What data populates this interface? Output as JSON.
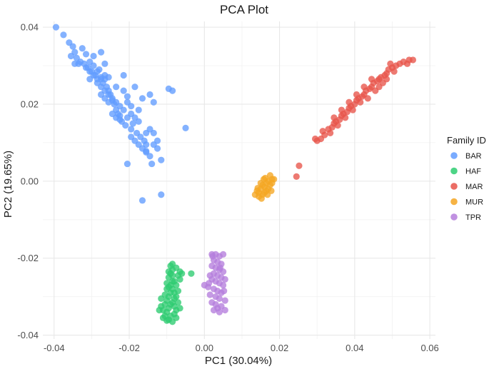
{
  "chart_data": {
    "type": "scatter",
    "title": "PCA Plot",
    "xlabel": "PC1 (30.04%)",
    "ylabel": "PC2 (19.65%)",
    "xlim": [
      -0.043,
      0.0615
    ],
    "ylim": [
      -0.041,
      0.0415
    ],
    "xticks": [
      -0.04,
      -0.02,
      0.0,
      0.02,
      0.04,
      0.06
    ],
    "xtick_labels": [
      "-0.04",
      "-0.02",
      "0.00",
      "0.02",
      "0.04",
      "0.06"
    ],
    "yticks": [
      -0.04,
      -0.02,
      0.0,
      0.02,
      0.04
    ],
    "ytick_labels": [
      "-0.04",
      "-0.02",
      "0.00",
      "0.02",
      "0.04"
    ],
    "grid": true,
    "legend": {
      "title": "Family ID",
      "position": "right"
    },
    "series": [
      {
        "name": "BAR",
        "color": "#619CFF",
        "points": [
          [
            -0.0395,
            0.04
          ],
          [
            -0.0375,
            0.038
          ],
          [
            -0.036,
            0.036
          ],
          [
            -0.035,
            0.035
          ],
          [
            -0.0345,
            0.0335
          ],
          [
            -0.034,
            0.032
          ],
          [
            -0.033,
            0.031
          ],
          [
            -0.032,
            0.0305
          ],
          [
            -0.031,
            0.0295
          ],
          [
            -0.0305,
            0.031
          ],
          [
            -0.03,
            0.0285
          ],
          [
            -0.0295,
            0.03
          ],
          [
            -0.029,
            0.0275
          ],
          [
            -0.0285,
            0.0265
          ],
          [
            -0.028,
            0.029
          ],
          [
            -0.0275,
            0.027
          ],
          [
            -0.027,
            0.0255
          ],
          [
            -0.0265,
            0.0265
          ],
          [
            -0.026,
            0.0245
          ],
          [
            -0.0255,
            0.0235
          ],
          [
            -0.025,
            0.0225
          ],
          [
            -0.0245,
            0.021
          ],
          [
            -0.024,
            0.02
          ],
          [
            -0.0235,
            0.0185
          ],
          [
            -0.023,
            0.0175
          ],
          [
            -0.0225,
            0.017
          ],
          [
            -0.022,
            0.0155
          ],
          [
            -0.021,
            0.0145
          ],
          [
            -0.0205,
            0.0165
          ],
          [
            -0.0195,
            0.0135
          ],
          [
            -0.019,
            0.015
          ],
          [
            -0.018,
            0.0125
          ],
          [
            -0.017,
            0.0115
          ],
          [
            -0.016,
            0.0105
          ],
          [
            -0.0155,
            0.0095
          ],
          [
            -0.0135,
            0.0125
          ],
          [
            -0.0125,
            0.0085
          ],
          [
            -0.0115,
            0.0055
          ],
          [
            -0.014,
            0.0045
          ],
          [
            -0.0155,
            0.0075
          ],
          [
            -0.0205,
            0.0045
          ],
          [
            -0.0115,
            -0.0035
          ],
          [
            -0.0165,
            -0.005
          ],
          [
            -0.005,
            0.0138
          ],
          [
            -0.0095,
            0.024
          ],
          [
            -0.0085,
            0.0235
          ],
          [
            -0.0145,
            0.0225
          ],
          [
            -0.0135,
            0.0205
          ],
          [
            -0.0185,
            0.0245
          ],
          [
            -0.0215,
            0.0275
          ],
          [
            -0.0205,
            0.022
          ],
          [
            -0.0175,
            0.0185
          ],
          [
            -0.0165,
            0.0215
          ],
          [
            -0.0255,
            0.027
          ],
          [
            -0.0275,
            0.0265
          ],
          [
            -0.0325,
            0.0345
          ],
          [
            -0.0315,
            0.033
          ],
          [
            -0.0335,
            0.0305
          ],
          [
            -0.0305,
            0.0285
          ],
          [
            -0.0295,
            0.0275
          ],
          [
            -0.0285,
            0.0255
          ],
          [
            -0.0275,
            0.0245
          ],
          [
            -0.0265,
            0.0235
          ],
          [
            -0.0255,
            0.0225
          ],
          [
            -0.0245,
            0.0215
          ],
          [
            -0.0235,
            0.0205
          ],
          [
            -0.0225,
            0.0195
          ],
          [
            -0.0215,
            0.0185
          ],
          [
            -0.0245,
            0.0175
          ],
          [
            -0.0235,
            0.0165
          ],
          [
            -0.0225,
            0.016
          ],
          [
            -0.0195,
            0.0175
          ],
          [
            -0.0185,
            0.0165
          ],
          [
            -0.0175,
            0.0155
          ],
          [
            -0.0195,
            0.0115
          ],
          [
            -0.0185,
            0.0105
          ],
          [
            -0.0175,
            0.0095
          ],
          [
            -0.0165,
            0.0085
          ],
          [
            -0.0155,
            0.0078
          ],
          [
            -0.0145,
            0.0065
          ],
          [
            -0.0135,
            0.0095
          ],
          [
            -0.0125,
            0.0105
          ],
          [
            -0.0155,
            0.0125
          ],
          [
            -0.0145,
            0.0135
          ],
          [
            -0.0275,
            0.0335
          ],
          [
            -0.0265,
            0.0305
          ],
          [
            -0.0295,
            0.0325
          ],
          [
            -0.0345,
            0.0305
          ],
          [
            -0.0355,
            0.0325
          ],
          [
            -0.0315,
            0.0295
          ],
          [
            -0.0305,
            0.0265
          ],
          [
            -0.0285,
            0.0285
          ],
          [
            -0.0265,
            0.0275
          ],
          [
            -0.0235,
            0.0245
          ],
          [
            -0.0215,
            0.0235
          ],
          [
            -0.0205,
            0.0205
          ],
          [
            -0.0195,
            0.0195
          ],
          [
            -0.0255,
            0.0205
          ],
          [
            -0.0265,
            0.0215
          ],
          [
            -0.0275,
            0.0225
          ]
        ]
      },
      {
        "name": "HAF",
        "color": "#2ECC71",
        "points": [
          [
            -0.0065,
            -0.0235
          ],
          [
            -0.007,
            -0.0245
          ],
          [
            -0.0075,
            -0.0225
          ],
          [
            -0.0085,
            -0.023
          ],
          [
            -0.009,
            -0.024
          ],
          [
            -0.0095,
            -0.025
          ],
          [
            -0.0085,
            -0.026
          ],
          [
            -0.009,
            -0.027
          ],
          [
            -0.0095,
            -0.0275
          ],
          [
            -0.01,
            -0.028
          ],
          [
            -0.0085,
            -0.028
          ],
          [
            -0.009,
            -0.029
          ],
          [
            -0.0095,
            -0.03
          ],
          [
            -0.01,
            -0.031
          ],
          [
            -0.0105,
            -0.032
          ],
          [
            -0.008,
            -0.0305
          ],
          [
            -0.0085,
            -0.0315
          ],
          [
            -0.009,
            -0.032
          ],
          [
            -0.0095,
            -0.033
          ],
          [
            -0.01,
            -0.034
          ],
          [
            -0.011,
            -0.0335
          ],
          [
            -0.0115,
            -0.0325
          ],
          [
            -0.012,
            -0.0335
          ],
          [
            -0.0105,
            -0.035
          ],
          [
            -0.0095,
            -0.036
          ],
          [
            -0.0085,
            -0.0365
          ],
          [
            -0.0075,
            -0.0355
          ],
          [
            -0.008,
            -0.0345
          ],
          [
            -0.0075,
            -0.0335
          ],
          [
            -0.0065,
            -0.033
          ],
          [
            -0.007,
            -0.0315
          ],
          [
            -0.0075,
            -0.03
          ],
          [
            -0.008,
            -0.029
          ],
          [
            -0.007,
            -0.0285
          ],
          [
            -0.0075,
            -0.027
          ],
          [
            -0.008,
            -0.026
          ],
          [
            -0.0085,
            -0.0245
          ],
          [
            -0.0095,
            -0.0235
          ],
          [
            -0.01,
            -0.0265
          ],
          [
            -0.0105,
            -0.0295
          ],
          [
            -0.0115,
            -0.0305
          ],
          [
            -0.011,
            -0.0355
          ],
          [
            -0.01,
            -0.0362
          ],
          [
            -0.009,
            -0.035
          ],
          [
            -0.0065,
            -0.0255
          ],
          [
            -0.006,
            -0.024
          ],
          [
            -0.0035,
            -0.024
          ],
          [
            -0.009,
            -0.022
          ],
          [
            -0.0085,
            -0.0215
          ],
          [
            -0.008,
            -0.0325
          ]
        ]
      },
      {
        "name": "MAR",
        "color": "#E8544A",
        "points": [
          [
            0.0295,
            0.011
          ],
          [
            0.03,
            0.0105
          ],
          [
            0.031,
            0.011
          ],
          [
            0.032,
            0.012
          ],
          [
            0.0315,
            0.013
          ],
          [
            0.033,
            0.0135
          ],
          [
            0.034,
            0.014
          ],
          [
            0.0345,
            0.015
          ],
          [
            0.035,
            0.0155
          ],
          [
            0.036,
            0.016
          ],
          [
            0.0365,
            0.017
          ],
          [
            0.037,
            0.0175
          ],
          [
            0.038,
            0.018
          ],
          [
            0.0385,
            0.019
          ],
          [
            0.039,
            0.0195
          ],
          [
            0.04,
            0.02
          ],
          [
            0.0405,
            0.021
          ],
          [
            0.041,
            0.0215
          ],
          [
            0.042,
            0.022
          ],
          [
            0.0425,
            0.0225
          ],
          [
            0.043,
            0.0235
          ],
          [
            0.044,
            0.024
          ],
          [
            0.0445,
            0.0245
          ],
          [
            0.045,
            0.0255
          ],
          [
            0.046,
            0.026
          ],
          [
            0.0465,
            0.0265
          ],
          [
            0.047,
            0.027
          ],
          [
            0.048,
            0.0275
          ],
          [
            0.0485,
            0.028
          ],
          [
            0.049,
            0.029
          ],
          [
            0.05,
            0.0295
          ],
          [
            0.051,
            0.03
          ],
          [
            0.052,
            0.0305
          ],
          [
            0.053,
            0.031
          ],
          [
            0.0545,
            0.0315
          ],
          [
            0.0555,
            0.0315
          ],
          [
            0.054,
            0.0305
          ],
          [
            0.0505,
            0.0285
          ],
          [
            0.0475,
            0.0255
          ],
          [
            0.0455,
            0.0235
          ],
          [
            0.0435,
            0.0215
          ],
          [
            0.0415,
            0.0205
          ],
          [
            0.0395,
            0.0185
          ],
          [
            0.0375,
            0.0165
          ],
          [
            0.0355,
            0.0145
          ],
          [
            0.0335,
            0.0125
          ],
          [
            0.0445,
            0.0265
          ],
          [
            0.0465,
            0.0245
          ],
          [
            0.0485,
            0.0265
          ],
          [
            0.0495,
            0.0305
          ],
          [
            0.0425,
            0.0245
          ],
          [
            0.0405,
            0.0225
          ],
          [
            0.0385,
            0.0205
          ],
          [
            0.0365,
            0.0185
          ],
          [
            0.0345,
            0.0165
          ],
          [
            0.0252,
            0.004
          ],
          [
            0.0245,
            0.0012
          ]
        ]
      },
      {
        "name": "MUR",
        "color": "#F5A623",
        "points": [
          [
            0.0135,
            -0.0035
          ],
          [
            0.014,
            -0.0025
          ],
          [
            0.0145,
            -0.003
          ],
          [
            0.015,
            -0.002
          ],
          [
            0.0155,
            -0.001
          ],
          [
            0.016,
            -0.0015
          ],
          [
            0.0165,
            -0.0005
          ],
          [
            0.017,
            0.0
          ],
          [
            0.0175,
            -0.001
          ],
          [
            0.018,
            0.0005
          ],
          [
            0.0185,
            0.0005
          ],
          [
            0.016,
            -0.003
          ],
          [
            0.0165,
            -0.0025
          ],
          [
            0.0155,
            -0.0035
          ],
          [
            0.0145,
            -0.004
          ],
          [
            0.017,
            -0.002
          ],
          [
            0.0175,
            0.0015
          ],
          [
            0.018,
            -0.0005
          ],
          [
            0.015,
            -0.0005
          ],
          [
            0.0158,
            0.0005
          ],
          [
            0.0168,
            -0.0035
          ],
          [
            0.0142,
            -0.0018
          ],
          [
            0.0178,
            -0.0025
          ],
          [
            0.0162,
            0.0008
          ],
          [
            0.0152,
            -0.0045
          ]
        ]
      },
      {
        "name": "TPR",
        "color": "#B57EDC",
        "points": [
          [
            0.002,
            -0.019
          ],
          [
            0.003,
            -0.019
          ],
          [
            0.004,
            -0.0195
          ],
          [
            0.005,
            -0.019
          ],
          [
            0.0025,
            -0.0205
          ],
          [
            0.0035,
            -0.021
          ],
          [
            0.0045,
            -0.0215
          ],
          [
            0.002,
            -0.022
          ],
          [
            0.003,
            -0.0225
          ],
          [
            0.004,
            -0.023
          ],
          [
            0.005,
            -0.0235
          ],
          [
            0.0025,
            -0.024
          ],
          [
            0.0035,
            -0.0245
          ],
          [
            0.0045,
            -0.025
          ],
          [
            0.002,
            -0.0255
          ],
          [
            0.003,
            -0.026
          ],
          [
            0.004,
            -0.0265
          ],
          [
            0.005,
            -0.027
          ],
          [
            0.0,
            -0.027
          ],
          [
            0.001,
            -0.0275
          ],
          [
            0.0025,
            -0.028
          ],
          [
            0.0035,
            -0.0285
          ],
          [
            0.0045,
            -0.029
          ],
          [
            0.0015,
            -0.0295
          ],
          [
            0.003,
            -0.03
          ],
          [
            0.004,
            -0.0305
          ],
          [
            0.0055,
            -0.031
          ],
          [
            0.002,
            -0.0315
          ],
          [
            0.003,
            -0.032
          ],
          [
            0.0045,
            -0.0325
          ],
          [
            0.0035,
            -0.033
          ],
          [
            0.0025,
            -0.0335
          ],
          [
            0.004,
            -0.034
          ],
          [
            0.0055,
            -0.0335
          ],
          [
            0.0015,
            -0.0245
          ],
          [
            0.0055,
            -0.0255
          ],
          [
            0.0012,
            -0.0265
          ],
          [
            0.0052,
            -0.0285
          ],
          [
            0.0022,
            -0.0195
          ],
          [
            0.0042,
            -0.0225
          ]
        ]
      }
    ]
  }
}
